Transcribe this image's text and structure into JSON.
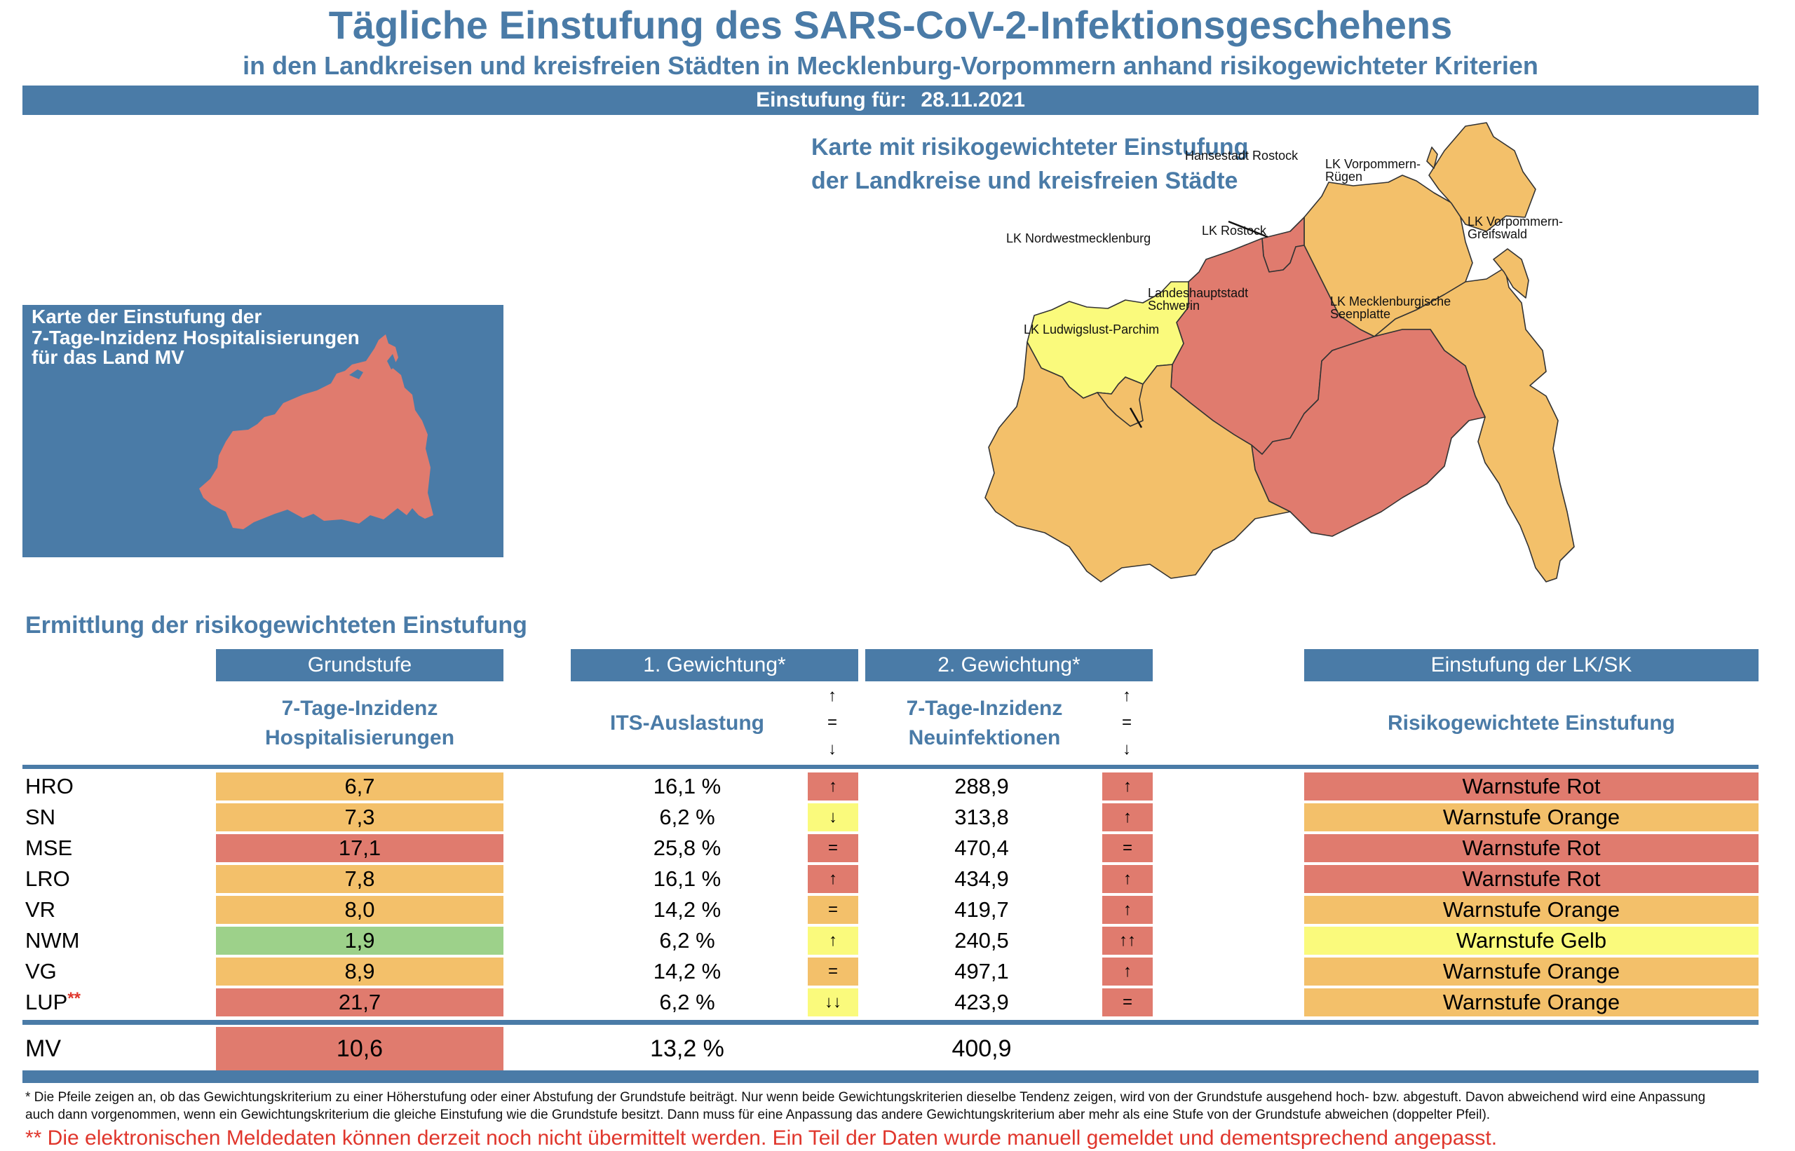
{
  "header": {
    "title": "Tägliche Einstufung des SARS-CoV-2-Infektionsgeschehens",
    "subtitle": "in den Landkreisen und kreisfreien Städten in Mecklenburg-Vorpommern anhand risikogewichteter Kriterien",
    "date_label": "Einstufung für:",
    "date_value": "28.11.2021"
  },
  "hosp_panel": {
    "lines": [
      "Karte der Einstufung der",
      "7-Tage-Inzidenz Hospitalisierungen",
      "für das Land MV"
    ],
    "map_color": "#e07b6e"
  },
  "map": {
    "title_lines": [
      "Karte mit risikogewichteter Einstufung",
      "der Landkreise und kreisfreien Städte"
    ],
    "regions": [
      {
        "label": "Hansestadt Rostock",
        "level": "red"
      },
      {
        "label": "LK Vorpommern-Rügen",
        "label_lines": [
          "LK Vorpommern-",
          "Rügen"
        ],
        "level": "orange"
      },
      {
        "label": "LK Nordwestmecklenburg",
        "level": "yellow"
      },
      {
        "label": "LK Rostock",
        "level": "red"
      },
      {
        "label": "LK Vorpommern-Greifswald",
        "label_lines": [
          "LK Vorpommern-",
          "Greifswald"
        ],
        "level": "orange"
      },
      {
        "label": "Landeshauptstadt Schwerin",
        "label_lines": [
          "Landeshauptstadt",
          "Schwerin"
        ],
        "level": "orange"
      },
      {
        "label": "LK Mecklenburgische Seenplatte",
        "label_lines": [
          "LK Mecklenburgische",
          "Seenplatte"
        ],
        "level": "red"
      },
      {
        "label": "LK Ludwigslust-Parchim",
        "level": "orange"
      }
    ]
  },
  "colors": {
    "brand_blue": "#4a7ba7",
    "red": "#e07b6e",
    "orange": "#f3c06a",
    "yellow": "#fafa7c",
    "green": "#9dd18a",
    "alert_red": "#e0362c"
  },
  "table": {
    "heading": "Ermittlung der risikogewichteten Einstufung",
    "columns": {
      "base": {
        "title": "Grundstufe",
        "sub": [
          "7-Tage-Inzidenz",
          "Hospitalisierungen"
        ]
      },
      "w1": {
        "title": "1. Gewichtung*",
        "sub": [
          "ITS-Auslastung"
        ]
      },
      "w2": {
        "title": "2. Gewichtung*",
        "sub": [
          "7-Tage-Inzidenz",
          "Neuinfektionen"
        ]
      },
      "result": {
        "title": "Einstufung der LK/SK",
        "sub": [
          "Risikogewichtete Einstufung"
        ]
      }
    },
    "arrow_legend": [
      "↑",
      "=",
      "↓"
    ],
    "rows": [
      {
        "name": "HRO",
        "flag": "",
        "base": "6,7",
        "base_level": "orange",
        "its": "16,1 %",
        "its_trend": "↑",
        "its_level": "red",
        "incidence": "288,9",
        "inc_trend": "↑",
        "inc_level": "red",
        "result": "Warnstufe Rot",
        "result_level": "red"
      },
      {
        "name": "SN",
        "flag": "",
        "base": "7,3",
        "base_level": "orange",
        "its": "6,2 %",
        "its_trend": "↓",
        "its_level": "yellow",
        "incidence": "313,8",
        "inc_trend": "↑",
        "inc_level": "red",
        "result": "Warnstufe Orange",
        "result_level": "orange"
      },
      {
        "name": "MSE",
        "flag": "",
        "base": "17,1",
        "base_level": "red",
        "its": "25,8 %",
        "its_trend": "=",
        "its_level": "red",
        "incidence": "470,4",
        "inc_trend": "=",
        "inc_level": "red",
        "result": "Warnstufe Rot",
        "result_level": "red"
      },
      {
        "name": "LRO",
        "flag": "",
        "base": "7,8",
        "base_level": "orange",
        "its": "16,1 %",
        "its_trend": "↑",
        "its_level": "red",
        "incidence": "434,9",
        "inc_trend": "↑",
        "inc_level": "red",
        "result": "Warnstufe Rot",
        "result_level": "red"
      },
      {
        "name": "VR",
        "flag": "",
        "base": "8,0",
        "base_level": "orange",
        "its": "14,2 %",
        "its_trend": "=",
        "its_level": "orange",
        "incidence": "419,7",
        "inc_trend": "↑",
        "inc_level": "red",
        "result": "Warnstufe Orange",
        "result_level": "orange"
      },
      {
        "name": "NWM",
        "flag": "",
        "base": "1,9",
        "base_level": "green",
        "its": "6,2 %",
        "its_trend": "↑",
        "its_level": "yellow",
        "incidence": "240,5",
        "inc_trend": "↑↑",
        "inc_level": "red",
        "result": "Warnstufe Gelb",
        "result_level": "yellow"
      },
      {
        "name": "VG",
        "flag": "",
        "base": "8,9",
        "base_level": "orange",
        "its": "14,2 %",
        "its_trend": "=",
        "its_level": "orange",
        "incidence": "497,1",
        "inc_trend": "↑",
        "inc_level": "red",
        "result": "Warnstufe Orange",
        "result_level": "orange"
      },
      {
        "name": "LUP",
        "flag": "**",
        "base": "21,7",
        "base_level": "red",
        "its": "6,2 %",
        "its_trend": "↓↓",
        "its_level": "yellow",
        "incidence": "423,9",
        "inc_trend": "=",
        "inc_level": "red",
        "result": "Warnstufe Orange",
        "result_level": "orange"
      }
    ],
    "total": {
      "name": "MV",
      "base": "10,6",
      "base_level": "red",
      "its": "13,2 %",
      "incidence": "400,9"
    }
  },
  "footnotes": {
    "arrows_line1": "* Die Pfeile zeigen an, ob das Gewichtungskriterium zu einer Höherstufung oder einer Abstufung der Grundstufe beiträgt. Nur wenn beide Gewichtungskriterien dieselbe Tendenz zeigen, wird von der Grundstufe ausgehend hoch- bzw. abgestuft.  Davon abweichend wird eine Anpassung",
    "arrows_line2": "auch dann vorgenommen, wenn ein Gewichtungskriterium die gleiche Einstufung wie die Grundstufe besitzt. Dann muss für eine Anpassung das andere Gewichtungskriterium aber mehr als eine Stufe von der Grundstufe abweichen (doppelter Pfeil).",
    "data_notice": "** Die elektronischen Meldedaten können derzeit noch nicht übermittelt werden. Ein Teil der Daten wurde manuell gemeldet und dementsprechend angepasst."
  }
}
